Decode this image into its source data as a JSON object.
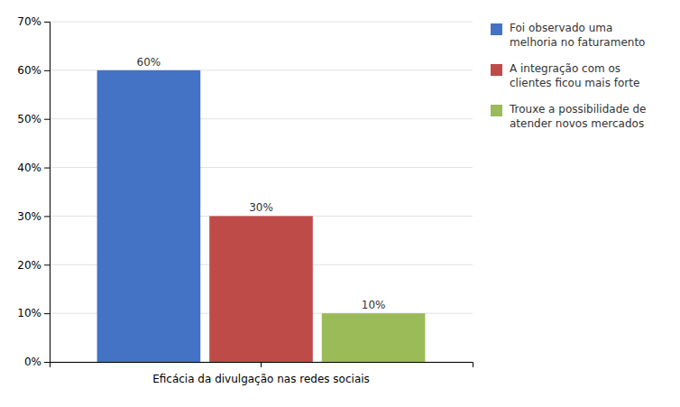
{
  "chart_data": {
    "type": "bar",
    "categories": [
      "Eficácia da divulgação nas redes sociais"
    ],
    "series": [
      {
        "name": "Foi observado uma\nmelhoria no faturamento",
        "color": "#4472C4",
        "values": [
          60
        ],
        "value_labels": [
          "60%"
        ]
      },
      {
        "name": "A integração com os\nclientes ficou mais forte",
        "color": "#BE4B48",
        "values": [
          30
        ],
        "value_labels": [
          "30%"
        ]
      },
      {
        "name": "Trouxe a possibilidade de\natender novos mercados",
        "color": "#9BBB59",
        "values": [
          10
        ],
        "value_labels": [
          "10%"
        ]
      }
    ],
    "ylim": [
      0,
      70
    ],
    "yticks": [
      {
        "value": 0,
        "label": "0%"
      },
      {
        "value": 10,
        "label": "10%"
      },
      {
        "value": 20,
        "label": "20%"
      },
      {
        "value": 30,
        "label": "30%"
      },
      {
        "value": 40,
        "label": "40%"
      },
      {
        "value": 50,
        "label": "50%"
      },
      {
        "value": 60,
        "label": "60%"
      },
      {
        "value": 70,
        "label": "70%"
      }
    ],
    "grid": true,
    "legend": "right",
    "data_labels": true
  }
}
